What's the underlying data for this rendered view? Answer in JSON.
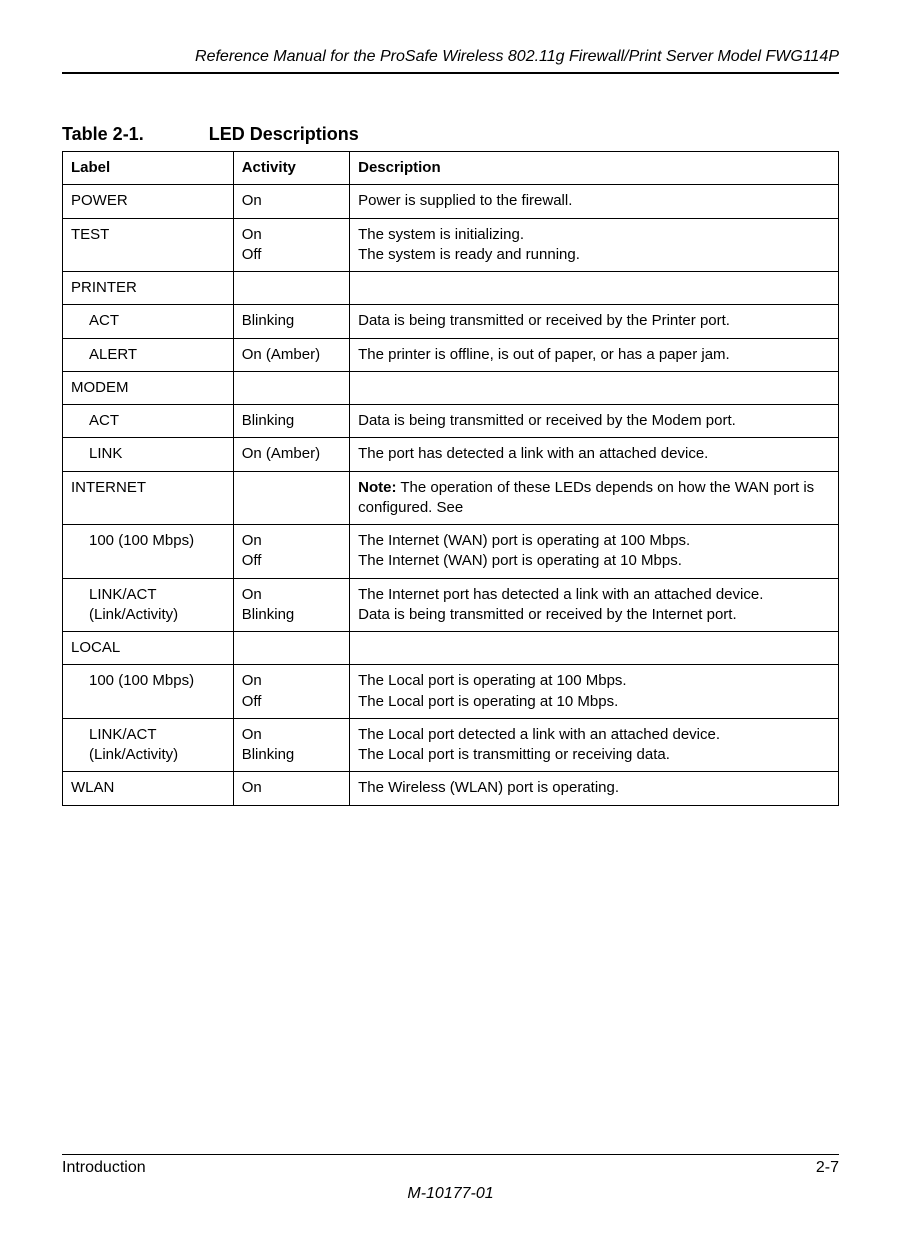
{
  "header": {
    "running_title": "Reference Manual for the ProSafe Wireless 802.11g  Firewall/Print Server Model FWG114P"
  },
  "table": {
    "caption_number": "Table 2-1.",
    "caption_title": "LED Descriptions",
    "columns": [
      "Label",
      "Activity",
      "Description"
    ],
    "column_widths_pct": [
      22,
      15,
      63
    ],
    "border_color": "#000000",
    "font_size_pt": 11,
    "header_font_weight": "bold",
    "rows": [
      {
        "label": "POWER",
        "activity": "On",
        "description": "Power is supplied to the firewall."
      },
      {
        "label": "TEST",
        "activity": "On\nOff",
        "description": "The system is initializing.\nThe system is ready and running."
      },
      {
        "group": "PRINTER",
        "group_description": "",
        "subrows": [
          {
            "label": "ACT",
            "activity": "Blinking",
            "description": "Data is being transmitted or received by the Printer port."
          },
          {
            "label": "ALERT",
            "activity": "On (Amber)",
            "description": "The printer is offline, is out of paper, or has a paper jam."
          }
        ]
      },
      {
        "group": "MODEM",
        "group_description": "",
        "subrows": [
          {
            "label": "ACT",
            "activity": "Blinking",
            "description": "Data is being transmitted or received by the Modem port."
          },
          {
            "label": "LINK",
            "activity": "On (Amber)",
            "description": "The port has detected a link with an attached device."
          }
        ]
      },
      {
        "group": "INTERNET",
        "group_description_prefix": "Note:",
        "group_description": " The operation of these LEDs depends on how the WAN port is configured. See",
        "subrows": [
          {
            "label": "100 (100 Mbps)",
            "activity": "On\nOff",
            "description": "The Internet (WAN) port is operating at 100 Mbps.\nThe Internet (WAN) port is operating at 10 Mbps."
          },
          {
            "label": "LINK/ACT\n(Link/Activity)",
            "activity": "On\nBlinking",
            "description": "The Internet port has detected a link with an attached device.\nData is being transmitted or received by the Internet port."
          }
        ]
      },
      {
        "group": "LOCAL",
        "group_description": "",
        "subrows": [
          {
            "label": "100 (100 Mbps)",
            "activity": "On\nOff",
            "description": "The Local port is operating at 100 Mbps.\nThe Local port is operating at 10 Mbps."
          },
          {
            "label": "LINK/ACT\n(Link/Activity)",
            "activity": "On\nBlinking",
            "description": "The Local port detected a link with an attached device.\nThe Local port is transmitting or receiving data."
          }
        ]
      },
      {
        "label": "WLAN",
        "activity": "On",
        "description": "The Wireless (WLAN) port is operating."
      }
    ]
  },
  "footer": {
    "section": "Introduction",
    "page_number": "2-7",
    "doc_id": "M-10177-01"
  },
  "colors": {
    "text": "#000000",
    "background": "#ffffff",
    "rule": "#000000"
  },
  "typography": {
    "body_font_family": "Arial, Helvetica, sans-serif",
    "header_italic": true,
    "caption_bold": true
  }
}
